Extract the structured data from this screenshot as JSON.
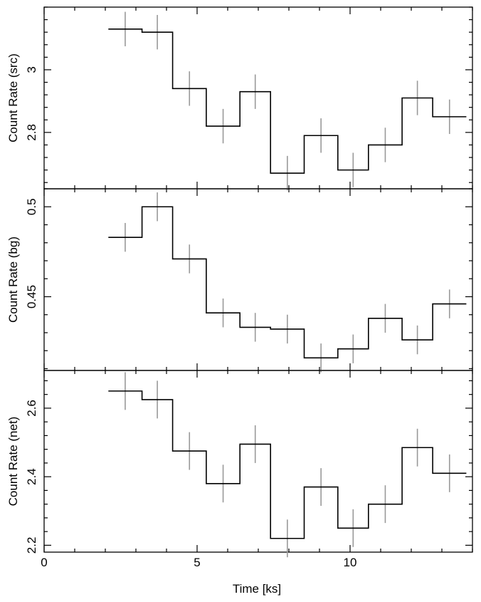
{
  "chart_data": [
    {
      "type": "line",
      "step": true,
      "xlabel": "",
      "ylabel": "Count Rate (src)",
      "xlim": [
        0,
        14
      ],
      "ylim": [
        2.62,
        3.2
      ],
      "yticks": [
        2.8,
        3
      ],
      "ytick_labels": [
        "2.8",
        "3"
      ],
      "x_edges": [
        2.1,
        3.2,
        4.2,
        5.3,
        6.4,
        7.4,
        8.5,
        9.6,
        10.6,
        11.7,
        12.7,
        13.8
      ],
      "x": [
        2.65,
        3.7,
        4.75,
        5.85,
        6.9,
        7.95,
        9.05,
        10.1,
        11.15,
        12.2,
        13.25
      ],
      "values": [
        3.13,
        3.12,
        2.94,
        2.82,
        2.93,
        2.67,
        2.79,
        2.68,
        2.76,
        2.91,
        2.85
      ],
      "errors": [
        0.055,
        0.055,
        0.055,
        0.055,
        0.055,
        0.055,
        0.055,
        0.055,
        0.055,
        0.055,
        0.055
      ],
      "colors": {
        "line": "#000000",
        "error": "#999999"
      }
    },
    {
      "type": "line",
      "step": true,
      "xlabel": "",
      "ylabel": "Count Rate (bg)",
      "xlim": [
        0,
        14
      ],
      "ylim": [
        0.409,
        0.51
      ],
      "yticks": [
        0.45,
        0.5
      ],
      "ytick_labels": [
        "0.45",
        "0.5"
      ],
      "x_edges": [
        2.1,
        3.2,
        4.2,
        5.3,
        6.4,
        7.4,
        8.5,
        9.6,
        10.6,
        11.7,
        12.7,
        13.8
      ],
      "x": [
        2.65,
        3.7,
        4.75,
        5.85,
        6.9,
        7.95,
        9.05,
        10.1,
        11.15,
        12.2,
        13.25
      ],
      "values": [
        0.483,
        0.5,
        0.471,
        0.441,
        0.433,
        0.432,
        0.416,
        0.421,
        0.438,
        0.426,
        0.446
      ],
      "errors": [
        0.008,
        0.008,
        0.008,
        0.008,
        0.008,
        0.008,
        0.008,
        0.008,
        0.008,
        0.008,
        0.008
      ],
      "colors": {
        "line": "#000000",
        "error": "#999999"
      }
    },
    {
      "type": "line",
      "step": true,
      "xlabel": "Time [ks]",
      "ylabel": "Count Rate (net)",
      "xlim": [
        0,
        14
      ],
      "ylim": [
        2.18,
        2.71
      ],
      "yticks": [
        2.2,
        2.4,
        2.6
      ],
      "ytick_labels": [
        "2.2",
        "2.4",
        "2.6"
      ],
      "xticks": [
        0,
        5,
        10
      ],
      "xtick_labels": [
        "0",
        "5",
        "10"
      ],
      "x_edges": [
        2.1,
        3.2,
        4.2,
        5.3,
        6.4,
        7.4,
        8.5,
        9.6,
        10.6,
        11.7,
        12.7,
        13.8
      ],
      "x": [
        2.65,
        3.7,
        4.75,
        5.85,
        6.9,
        7.95,
        9.05,
        10.1,
        11.15,
        12.2,
        13.25
      ],
      "values": [
        2.65,
        2.625,
        2.475,
        2.38,
        2.495,
        2.22,
        2.37,
        2.25,
        2.32,
        2.485,
        2.41
      ],
      "errors": [
        0.055,
        0.055,
        0.055,
        0.055,
        0.055,
        0.055,
        0.055,
        0.055,
        0.055,
        0.055,
        0.055
      ],
      "colors": {
        "line": "#000000",
        "error": "#999999"
      }
    }
  ]
}
